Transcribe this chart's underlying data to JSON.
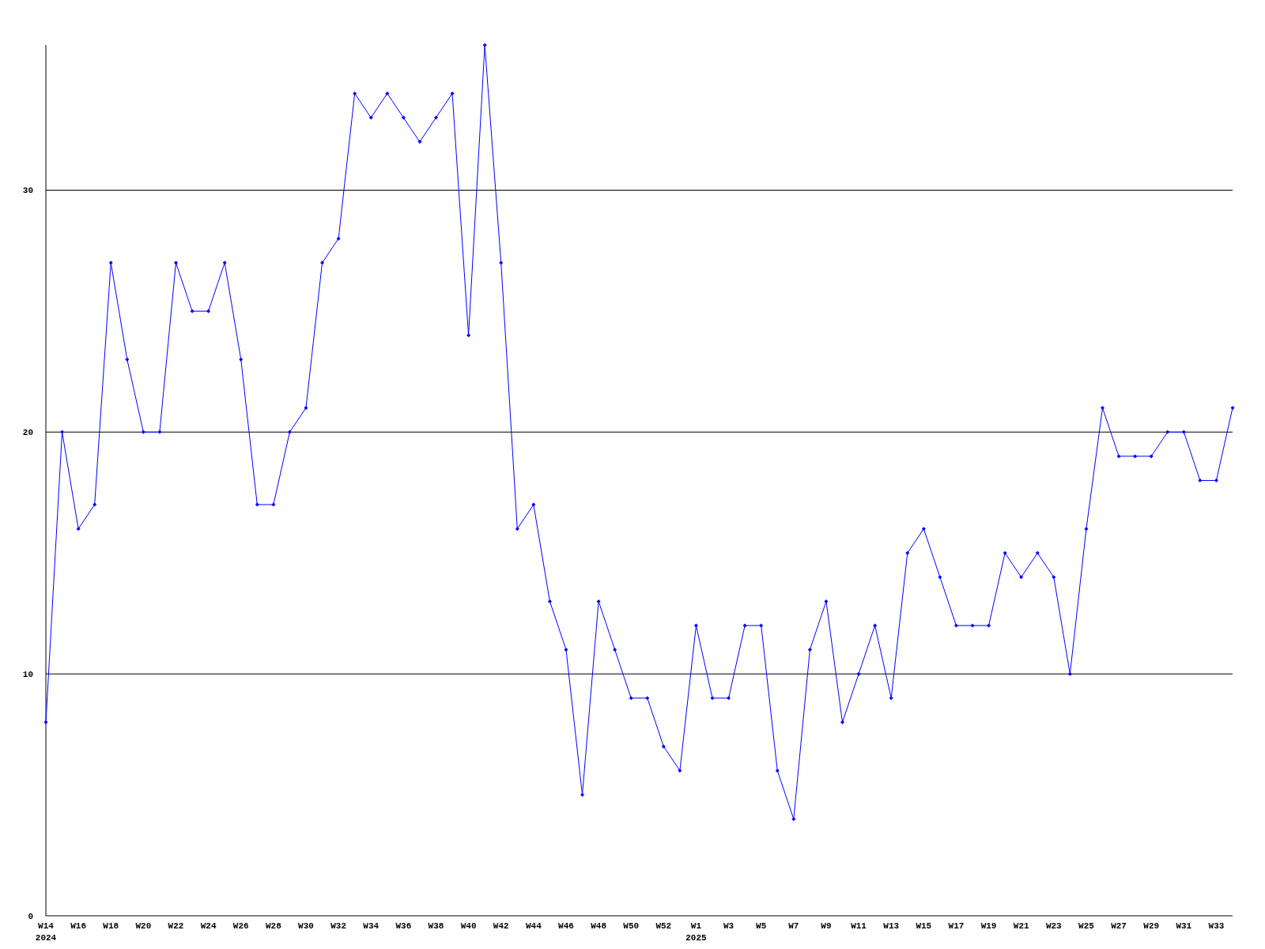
{
  "chart_data": {
    "type": "line",
    "categories": [
      "W14 2024",
      null,
      "W16",
      null,
      "W18",
      null,
      "W20",
      null,
      "W22",
      null,
      "W24",
      null,
      "W26",
      null,
      "W28",
      null,
      "W30",
      null,
      "W32",
      null,
      "W34",
      null,
      "W36",
      null,
      "W38",
      null,
      "W40",
      null,
      "W42",
      null,
      "W44",
      null,
      "W46",
      null,
      "W48",
      null,
      "W50",
      null,
      "W52",
      null,
      "W1 2025",
      null,
      "W3",
      null,
      "W5",
      null,
      "W7",
      null,
      "W9",
      null,
      "W11",
      null,
      "W13",
      null,
      "W15",
      null,
      "W17",
      null,
      "W19",
      null,
      "W21",
      null,
      "W23",
      null,
      "W25",
      null,
      "W27",
      null,
      "W29",
      null,
      "W31",
      null,
      "W33",
      null
    ],
    "series": [
      {
        "color": "#0000ff",
        "values": [
          8,
          20,
          16,
          17,
          27,
          23,
          20,
          20,
          27,
          25,
          25,
          27,
          23,
          17,
          17,
          20,
          21,
          27,
          28,
          34,
          33,
          34,
          33,
          32,
          33,
          34,
          24,
          36,
          27,
          16,
          17,
          13,
          11,
          5,
          13,
          11,
          9,
          9,
          7,
          6,
          12,
          9,
          9,
          12,
          12,
          6,
          4,
          11,
          13,
          8,
          10,
          12,
          9,
          15,
          16,
          14,
          12,
          12,
          12,
          15,
          14,
          15,
          14,
          10,
          16,
          21,
          19,
          19,
          19,
          20,
          20,
          18,
          18,
          21
        ]
      }
    ],
    "ylim": [
      0,
      36
    ],
    "yticks": [
      0,
      10,
      20,
      30
    ],
    "grid": "y",
    "marker": "diamond",
    "line_style": "solid"
  }
}
